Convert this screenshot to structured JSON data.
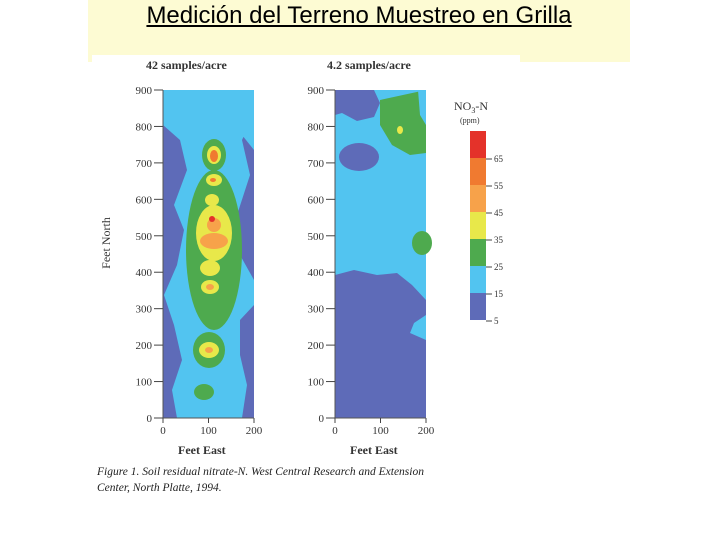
{
  "slide": {
    "title": "Medición del Terreno Muestreo en Grilla"
  },
  "figure": {
    "maps": [
      {
        "title": "42 samples/acre"
      },
      {
        "title": "4.2 samples/acre"
      }
    ],
    "ylabel": "Feet North",
    "xlabel": "Feet East",
    "yticks": [
      "900",
      "800",
      "700",
      "600",
      "500",
      "400",
      "300",
      "200",
      "100",
      "0"
    ],
    "xticks": [
      "0",
      "100",
      "200"
    ],
    "legend": {
      "title_main": "NO",
      "title_sub": "3",
      "title_suffix": "-N",
      "unit": "(ppm)",
      "labels": [
        "65",
        "55",
        "45",
        "35",
        "25",
        "15",
        "5"
      ]
    },
    "caption_line1": "Figure 1. Soil residual nitrate-N. West Central Research and Extension",
    "caption_line2": "Center, North Platte, 1994."
  },
  "colors": {
    "class_5": "#5e6bb8",
    "class_15": "#52c4f0",
    "class_25": "#4eaa4e",
    "class_35": "#e8e84a",
    "class_45": "#f7a24a",
    "class_55": "#f07a30",
    "class_65": "#e4322a"
  }
}
